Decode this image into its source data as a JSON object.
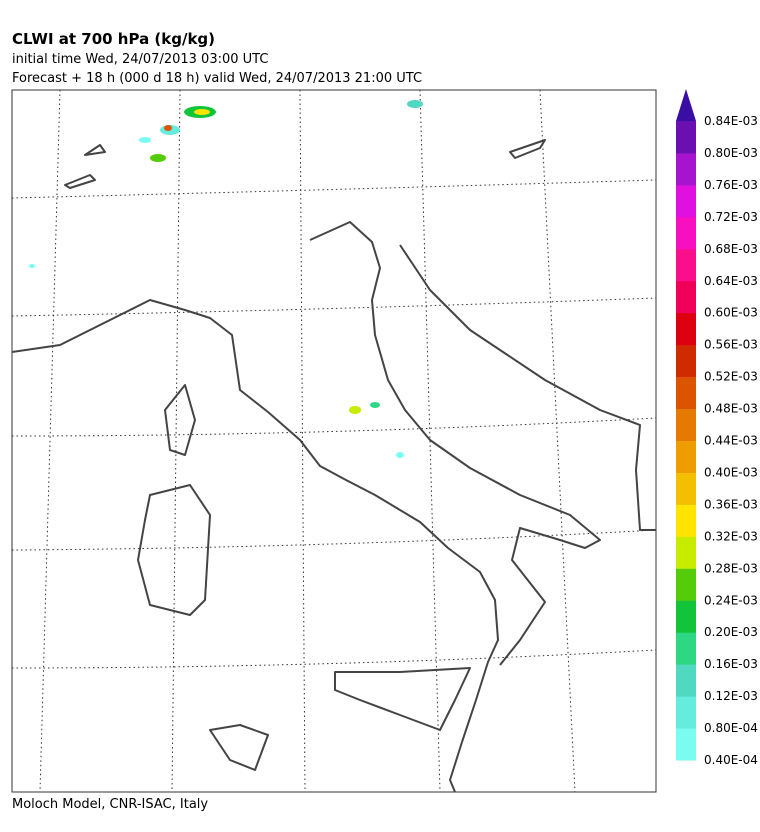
{
  "header": {
    "title": "CLWI at 700 hPa (kg/kg)",
    "initial_time": "initial time  Wed, 24/07/2013  03:00 UTC",
    "forecast": "Forecast  +  18 h  (000 d 18 h)  valid Wed, 24/07/2013 21:00 UTC"
  },
  "colorbar": {
    "labels": [
      "0.40E-04",
      "0.80E-04",
      "0.12E-03",
      "0.16E-03",
      "0.20E-03",
      "0.24E-03",
      "0.28E-03",
      "0.32E-03",
      "0.36E-03",
      "0.40E-03",
      "0.44E-03",
      "0.48E-03",
      "0.52E-03",
      "0.56E-03",
      "0.60E-03",
      "0.64E-03",
      "0.68E-03",
      "0.72E-03",
      "0.76E-03",
      "0.80E-03",
      "0.84E-03"
    ],
    "colors": [
      "#7afcf0",
      "#66ecdc",
      "#50d8c0",
      "#2ed882",
      "#12c43a",
      "#55cc0a",
      "#c8ec00",
      "#ffe400",
      "#f2c000",
      "#ee9c00",
      "#e47a00",
      "#dc5400",
      "#d02a00",
      "#dc0010",
      "#f00058",
      "#fa0e8c",
      "#f810c0",
      "#e010e0",
      "#a614d0",
      "#6a10b0",
      "#3a0ea4"
    ]
  },
  "footer": "Moloch Model, CNR-ISAC, Italy"
}
